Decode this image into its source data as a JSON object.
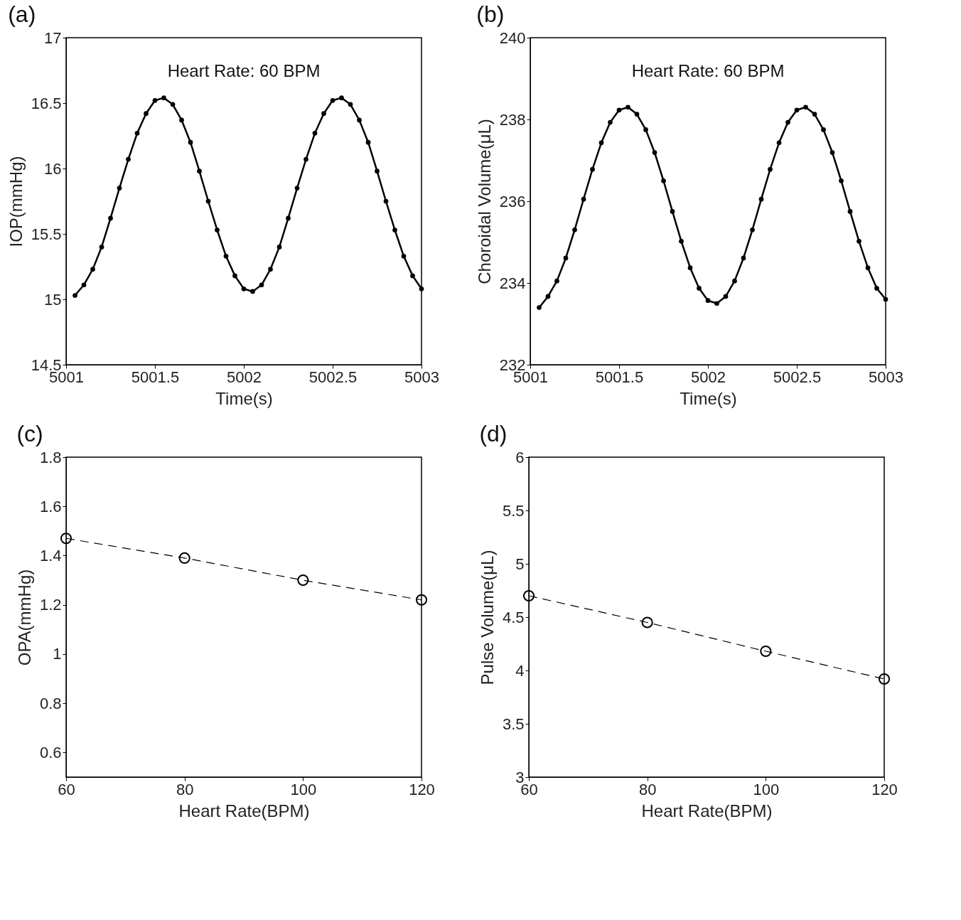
{
  "chart_data": [
    {
      "type": "line",
      "title": "(a)",
      "annotations": [
        "Heart Rate: 60 BPM"
      ],
      "xlabel": "Time(s)",
      "ylabel": "IOP(mmHg)",
      "marker": "circle",
      "line_style": "solid",
      "x": [
        5001.05,
        5001.1,
        5001.15,
        5001.2,
        5001.25,
        5001.3,
        5001.35,
        5001.4,
        5001.45,
        5001.5,
        5001.55,
        5001.6,
        5001.65,
        5001.7,
        5001.75,
        5001.8,
        5001.85,
        5001.9,
        5001.95,
        5002.0,
        5002.05,
        5002.1,
        5002.15,
        5002.2,
        5002.25,
        5002.3,
        5002.35,
        5002.4,
        5002.45,
        5002.5,
        5002.55,
        5002.6,
        5002.65,
        5002.7,
        5002.75,
        5002.8,
        5002.85,
        5002.9,
        5002.95,
        5003.0
      ],
      "series": [
        {
          "color": "#000000",
          "values": [
            15.03,
            15.11,
            15.23,
            15.4,
            15.62,
            15.85,
            16.07,
            16.27,
            16.42,
            16.52,
            16.54,
            16.49,
            16.37,
            16.2,
            15.98,
            15.75,
            15.53,
            15.33,
            15.18,
            15.08,
            15.06,
            15.11,
            15.23,
            15.4,
            15.62,
            15.85,
            16.07,
            16.27,
            16.42,
            16.52,
            16.54,
            16.49,
            16.37,
            16.2,
            15.98,
            15.75,
            15.53,
            15.33,
            15.18,
            15.08
          ]
        }
      ],
      "xlim": [
        5001,
        5003
      ],
      "xticks": [
        5001,
        5001.5,
        5002,
        5002.5,
        5003
      ],
      "ylim": [
        14.5,
        17
      ],
      "yticks": [
        14.5,
        15,
        15.5,
        16,
        16.5,
        17
      ]
    },
    {
      "type": "line",
      "title": "(b)",
      "annotations": [
        "Heart Rate: 60 BPM"
      ],
      "xlabel": "Time(s)",
      "ylabel": "Choroidal Volume(μL)",
      "marker": "circle",
      "line_style": "solid",
      "x": [
        5001.05,
        5001.1,
        5001.15,
        5001.2,
        5001.25,
        5001.3,
        5001.35,
        5001.4,
        5001.45,
        5001.5,
        5001.55,
        5001.6,
        5001.65,
        5001.7,
        5001.75,
        5001.8,
        5001.85,
        5001.9,
        5001.95,
        5002.0,
        5002.05,
        5002.1,
        5002.15,
        5002.2,
        5002.25,
        5002.3,
        5002.35,
        5002.4,
        5002.45,
        5002.5,
        5002.55,
        5002.6,
        5002.65,
        5002.7,
        5002.75,
        5002.8,
        5002.85,
        5002.9,
        5002.95,
        5003.0
      ],
      "series": [
        {
          "color": "#000000",
          "values": [
            233.4,
            233.67,
            234.05,
            234.61,
            235.3,
            236.05,
            236.78,
            237.43,
            237.93,
            238.23,
            238.3,
            238.13,
            237.75,
            237.19,
            236.5,
            235.75,
            235.02,
            234.37,
            233.87,
            233.57,
            233.5,
            233.67,
            234.05,
            234.61,
            235.3,
            236.05,
            236.78,
            237.43,
            237.93,
            238.23,
            238.3,
            238.13,
            237.75,
            237.19,
            236.5,
            235.75,
            235.02,
            234.37,
            233.87,
            233.6
          ]
        }
      ],
      "xlim": [
        5001,
        5003
      ],
      "xticks": [
        5001,
        5001.5,
        5002,
        5002.5,
        5003
      ],
      "ylim": [
        232,
        240
      ],
      "yticks": [
        232,
        234,
        236,
        238,
        240
      ]
    },
    {
      "type": "line",
      "title": "(c)",
      "xlabel": "Heart Rate(BPM)",
      "ylabel": "OPA(mmHg)",
      "marker": "circle",
      "line_style": "dashed",
      "x": [
        60,
        80,
        100,
        120
      ],
      "series": [
        {
          "color": "#000000",
          "values": [
            1.47,
            1.39,
            1.3,
            1.22
          ]
        }
      ],
      "xlim": [
        60,
        120
      ],
      "xticks": [
        60,
        80,
        100,
        120
      ],
      "ylim": [
        0.5,
        1.8
      ],
      "yticks": [
        0.6,
        0.8,
        1,
        1.2,
        1.4,
        1.6,
        1.8
      ]
    },
    {
      "type": "line",
      "title": "(d)",
      "xlabel": "Heart Rate(BPM)",
      "ylabel": "Pulse Volume(μL)",
      "marker": "circle",
      "line_style": "dashed",
      "x": [
        60,
        80,
        100,
        120
      ],
      "series": [
        {
          "color": "#000000",
          "values": [
            4.7,
            4.45,
            4.18,
            3.92
          ]
        }
      ],
      "xlim": [
        60,
        120
      ],
      "xticks": [
        60,
        80,
        100,
        120
      ],
      "ylim": [
        3,
        6
      ],
      "yticks": [
        3,
        3.5,
        4,
        4.5,
        5,
        5.5,
        6
      ]
    }
  ]
}
